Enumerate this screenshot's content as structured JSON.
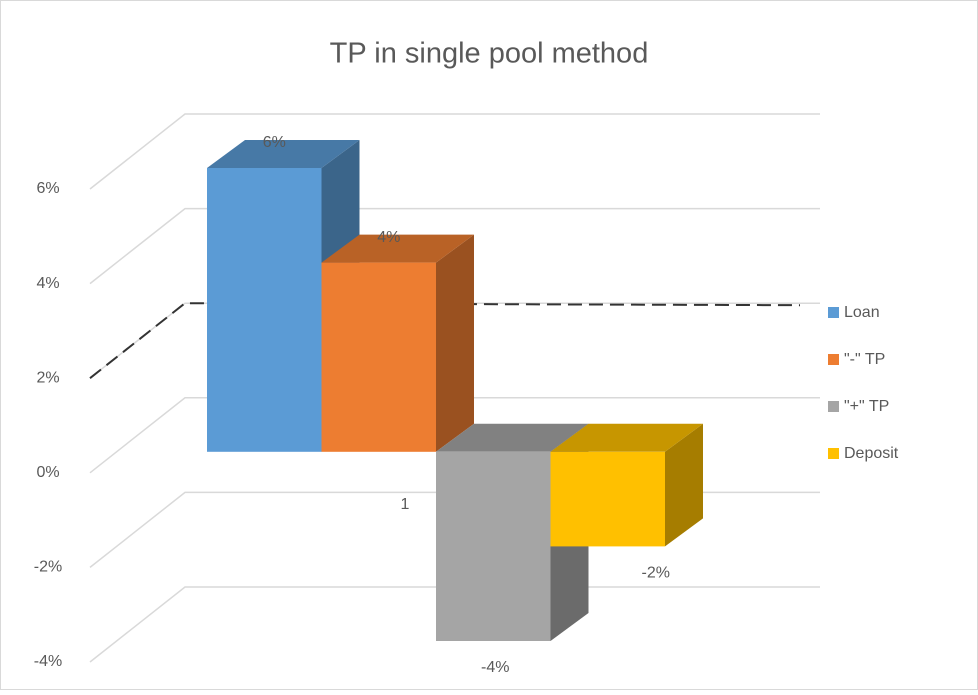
{
  "chart_data": {
    "type": "bar3d",
    "title": "TP in single pool method",
    "categories": [
      "1"
    ],
    "series": [
      {
        "name": "Loan",
        "color": "#5b9bd5",
        "values": [
          6
        ],
        "value_labels": [
          "6%"
        ]
      },
      {
        "name": "\"-\" TP",
        "color": "#ed7d31",
        "values": [
          4
        ],
        "value_labels": [
          "4%"
        ]
      },
      {
        "name": "\"+\" TP",
        "color": "#a5a5a5",
        "values": [
          -4
        ],
        "value_labels": [
          "-4%"
        ]
      },
      {
        "name": "Deposit",
        "color": "#ffc000",
        "values": [
          -2
        ],
        "value_labels": [
          "-2%"
        ]
      }
    ],
    "ylim": [
      -4,
      6
    ],
    "yticks": [
      {
        "value": -4,
        "label": "-4%"
      },
      {
        "value": -2,
        "label": "-2%"
      },
      {
        "value": 0,
        "label": "0%"
      },
      {
        "value": 2,
        "label": "2%"
      },
      {
        "value": 4,
        "label": "4%"
      },
      {
        "value": 6,
        "label": "6%"
      }
    ],
    "reference_line": 2,
    "grid": true,
    "legend": "right"
  }
}
